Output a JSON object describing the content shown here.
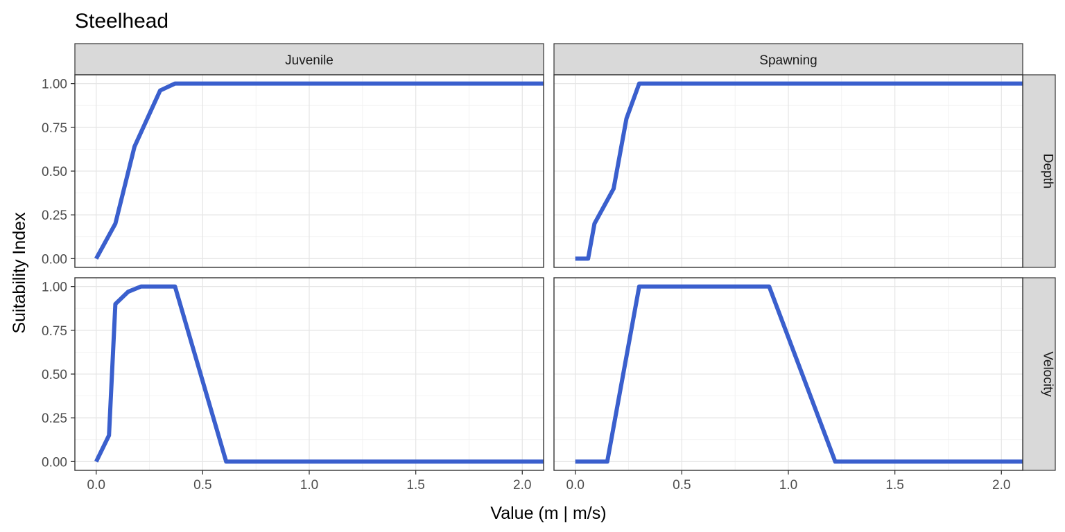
{
  "chart_data": {
    "type": "line",
    "title": "Steelhead",
    "xlabel": "Value (m | m/s)",
    "ylabel": "Suitability Index",
    "facet_columns": [
      "Juvenile",
      "Spawning"
    ],
    "facet_rows": [
      "Depth",
      "Velocity"
    ],
    "xlim": [
      -0.1,
      2.1
    ],
    "ylim": [
      -0.05,
      1.05
    ],
    "x_ticks": [
      "0.0",
      "0.5",
      "1.0",
      "1.5",
      "2.0"
    ],
    "y_ticks": [
      "0.00",
      "0.25",
      "0.50",
      "0.75",
      "1.00"
    ],
    "grid": true,
    "line_color": "#3a5fcd",
    "panels": [
      {
        "column": "Juvenile",
        "row": "Depth",
        "x": [
          0.0,
          0.09,
          0.18,
          0.3,
          0.37,
          2.1
        ],
        "y": [
          0.0,
          0.2,
          0.64,
          0.96,
          1.0,
          1.0
        ]
      },
      {
        "column": "Spawning",
        "row": "Depth",
        "x": [
          0.0,
          0.06,
          0.09,
          0.18,
          0.24,
          0.3,
          2.1
        ],
        "y": [
          0.0,
          0.0,
          0.2,
          0.4,
          0.8,
          1.0,
          1.0
        ]
      },
      {
        "column": "Juvenile",
        "row": "Velocity",
        "x": [
          0.0,
          0.06,
          0.09,
          0.15,
          0.21,
          0.37,
          0.61,
          2.1
        ],
        "y": [
          0.0,
          0.15,
          0.9,
          0.97,
          1.0,
          1.0,
          0.0,
          0.0
        ]
      },
      {
        "column": "Spawning",
        "row": "Velocity",
        "x": [
          0.0,
          0.15,
          0.3,
          0.91,
          1.22,
          2.1
        ],
        "y": [
          0.0,
          0.0,
          1.0,
          1.0,
          0.0,
          0.0
        ]
      }
    ]
  }
}
